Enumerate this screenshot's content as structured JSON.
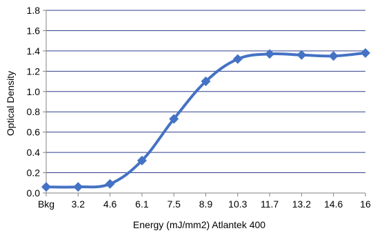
{
  "chart_data": {
    "type": "line",
    "title": "",
    "xlabel": "Energy (mJ/mm2) Atlantek 400",
    "ylabel": "Optical Density",
    "categories": [
      "Bkg",
      "3.2",
      "4.6",
      "6.1",
      "7.5",
      "8.9",
      "10.3",
      "11.7",
      "13.2",
      "14.6",
      "16"
    ],
    "series": [
      {
        "values": [
          0.06,
          0.06,
          0.09,
          0.32,
          0.73,
          1.1,
          1.32,
          1.37,
          1.36,
          1.35,
          1.38
        ]
      }
    ],
    "ylim": [
      0,
      1.8
    ],
    "yticks": [
      "0.0",
      "0.2",
      "0.4",
      "0.6",
      "0.8",
      "1.0",
      "1.2",
      "1.4",
      "1.6",
      "1.8"
    ],
    "grid": "horizontal",
    "legend": "none",
    "colors": {
      "series": "#4472C4",
      "grid": "#2F3E8C",
      "axis": "#808080"
    },
    "marker": "diamond"
  }
}
